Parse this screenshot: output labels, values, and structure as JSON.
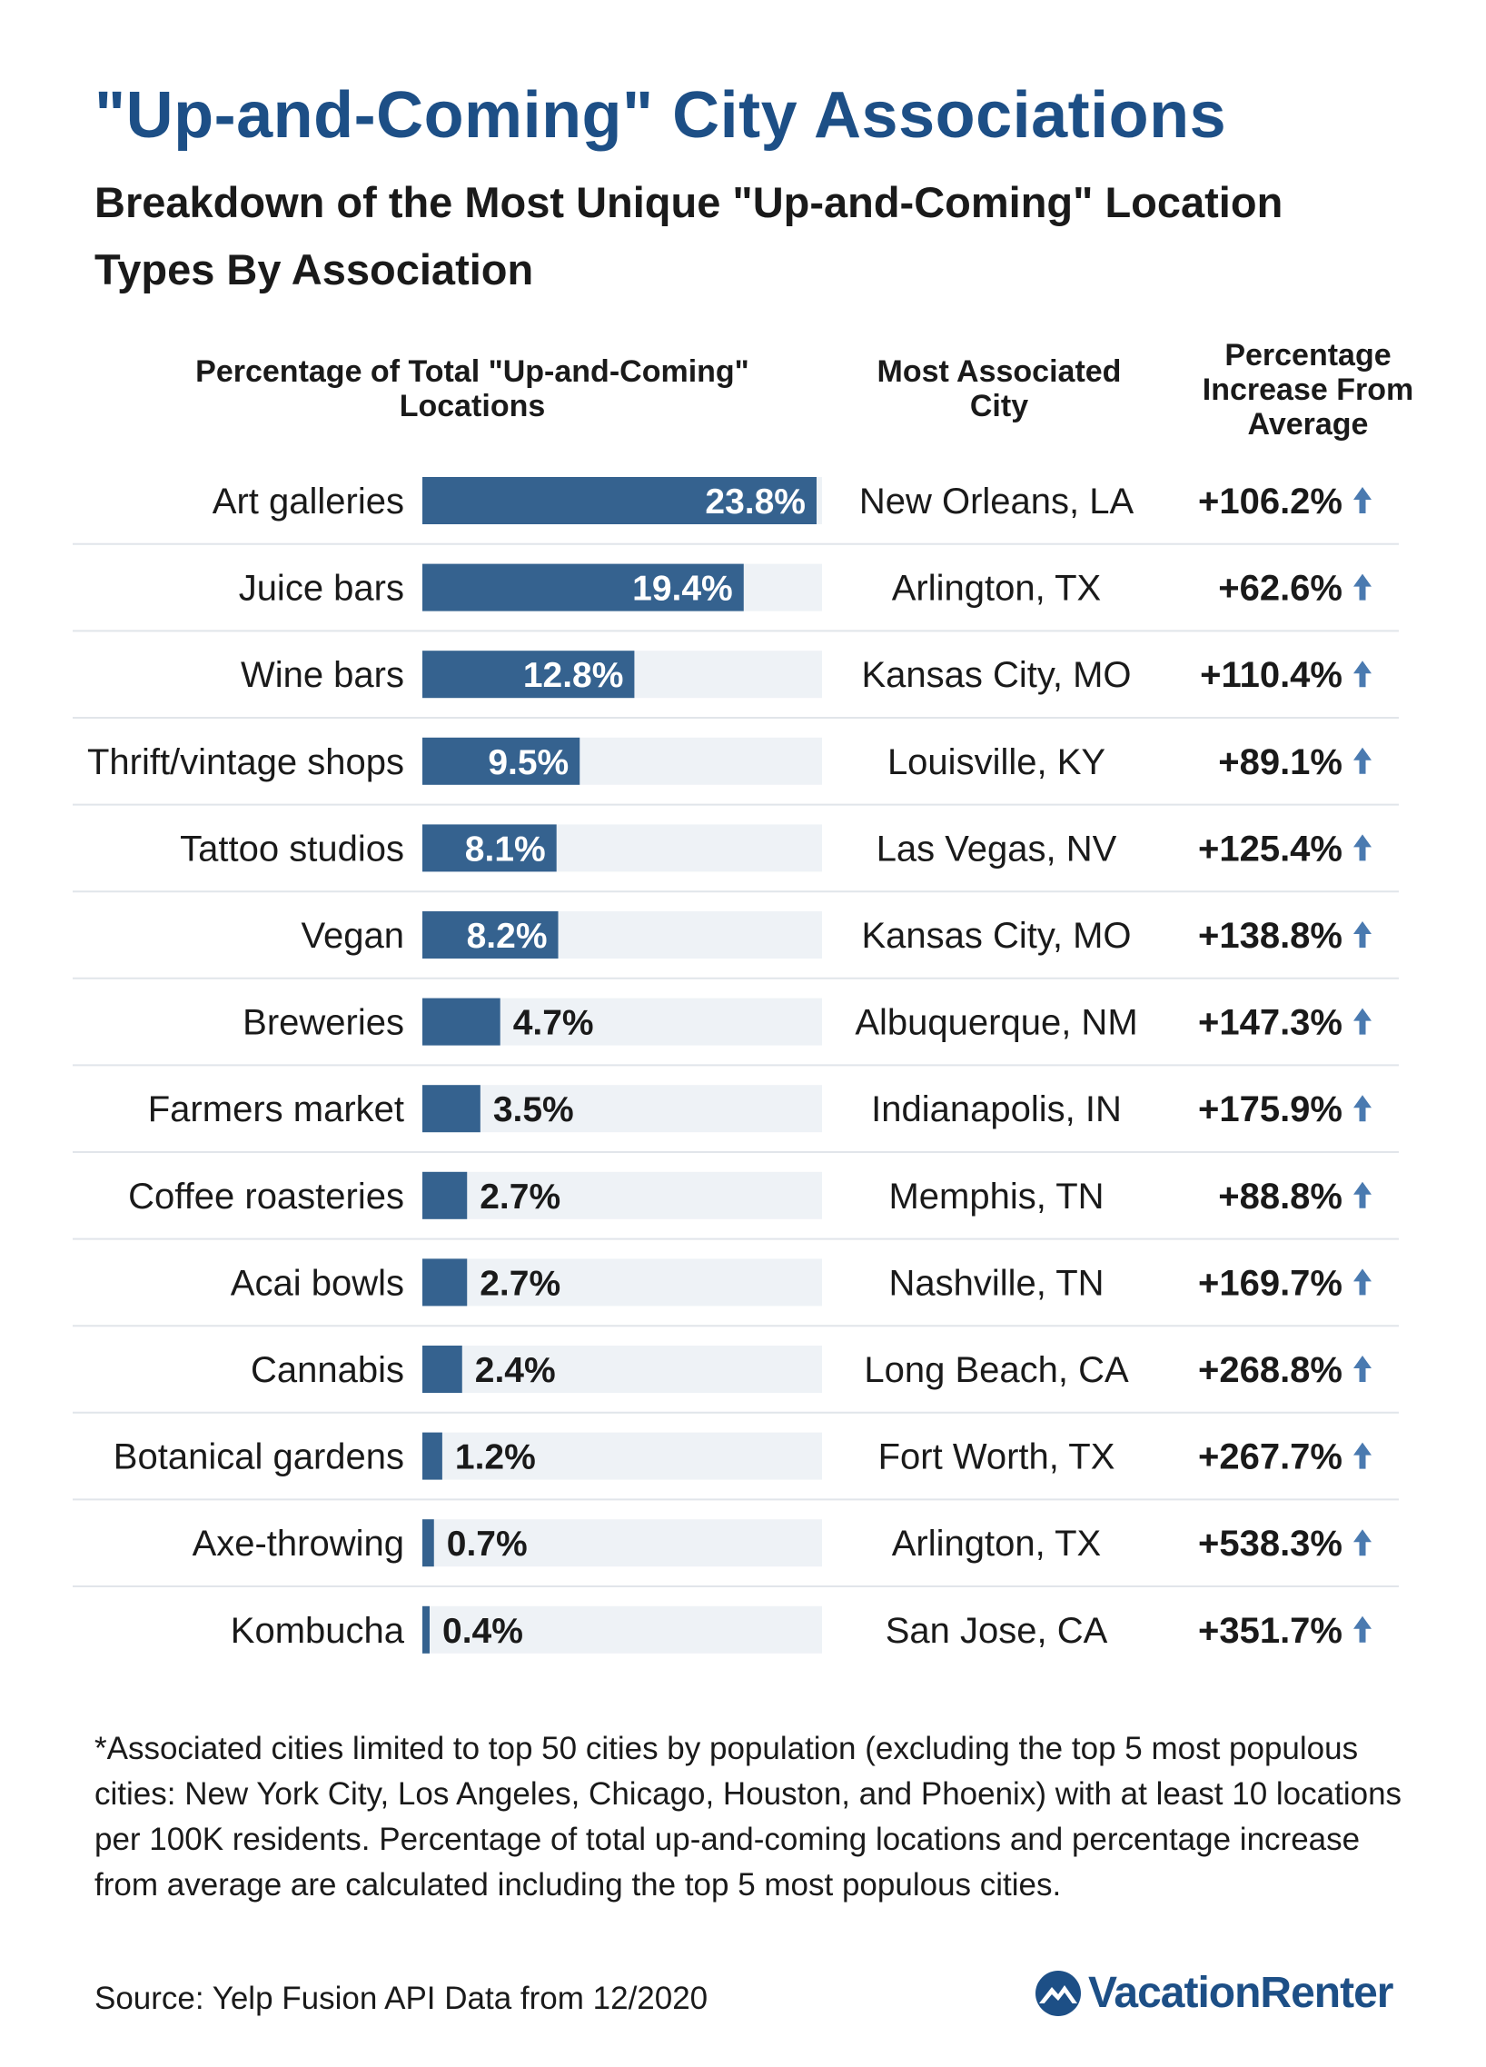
{
  "title": "\"Up-and-Coming\" City Associations",
  "subtitle": "Breakdown of the Most Unique \"Up-and-Coming\" Location Types By Association",
  "headers": {
    "percentage": "Percentage of Total \"Up-and-Coming\" Locations",
    "city": "Most Associated City",
    "increase": "Percentage Increase From Average"
  },
  "chart_data": {
    "type": "bar",
    "orientation": "horizontal",
    "max": 23.8,
    "accent_color": "#35628f",
    "track_color": "#eef2f6",
    "arrow_color": "#4a7ab0",
    "rows": [
      {
        "category": "Art galleries",
        "value": 23.8,
        "label": "23.8%",
        "city": "New Orleans, LA",
        "increase": "+106.2%"
      },
      {
        "category": "Juice bars",
        "value": 19.4,
        "label": "19.4%",
        "city": "Arlington, TX",
        "increase": "+62.6%"
      },
      {
        "category": "Wine bars",
        "value": 12.8,
        "label": "12.8%",
        "city": "Kansas City, MO",
        "increase": "+110.4%"
      },
      {
        "category": "Thrift/vintage shops",
        "value": 9.5,
        "label": "9.5%",
        "city": "Louisville, KY",
        "increase": "+89.1%"
      },
      {
        "category": "Tattoo studios",
        "value": 8.1,
        "label": "8.1%",
        "city": "Las Vegas, NV",
        "increase": "+125.4%"
      },
      {
        "category": "Vegan",
        "value": 8.2,
        "label": "8.2%",
        "city": "Kansas City, MO",
        "increase": "+138.8%"
      },
      {
        "category": "Breweries",
        "value": 4.7,
        "label": "4.7%",
        "city": "Albuquerque, NM",
        "increase": "+147.3%"
      },
      {
        "category": "Farmers market",
        "value": 3.5,
        "label": "3.5%",
        "city": "Indianapolis, IN",
        "increase": "+175.9%"
      },
      {
        "category": "Coffee roasteries",
        "value": 2.7,
        "label": "2.7%",
        "city": "Memphis, TN",
        "increase": "+88.8%"
      },
      {
        "category": "Acai bowls",
        "value": 2.7,
        "label": "2.7%",
        "city": "Nashville, TN",
        "increase": "+169.7%"
      },
      {
        "category": "Cannabis",
        "value": 2.4,
        "label": "2.4%",
        "city": "Long Beach, CA",
        "increase": "+268.8%"
      },
      {
        "category": "Botanical gardens",
        "value": 1.2,
        "label": "1.2%",
        "city": "Fort Worth, TX",
        "increase": "+267.7%"
      },
      {
        "category": "Axe-throwing",
        "value": 0.7,
        "label": "0.7%",
        "city": "Arlington, TX",
        "increase": "+538.3%"
      },
      {
        "category": "Kombucha",
        "value": 0.4,
        "label": "0.4%",
        "city": "San Jose, CA",
        "increase": "+351.7%"
      }
    ]
  },
  "footnote": "*Associated cities limited to top 50 cities by population (excluding the top 5 most populous cities: New York City, Los Angeles, Chicago, Houston, and Phoenix) with at least 10 locations per 100K residents. Percentage of total up-and-coming locations and percentage increase from average are calculated including the top 5 most populous cities.",
  "source": "Source: Yelp Fusion API Data from 12/2020",
  "logo": {
    "text": "VacationRenter",
    "icon": "mountain-logo-icon"
  }
}
